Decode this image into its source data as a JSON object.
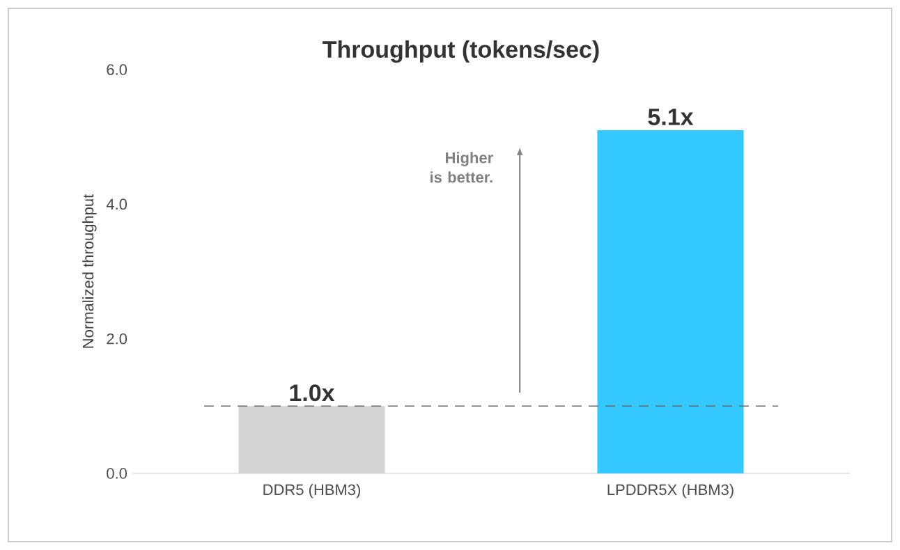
{
  "chart_data": {
    "type": "bar",
    "title": "Throughput (tokens/sec)",
    "ylabel": "Normalized throughput",
    "categories": [
      "DDR5 (HBM3)",
      "LPDDR5X (HBM3)"
    ],
    "values": [
      1.0,
      5.1
    ],
    "colors": [
      "#d4d4d4",
      "#33c8ff"
    ],
    "value_labels": [
      "1.0x",
      "5.1x"
    ],
    "ylim": [
      0,
      6
    ],
    "yticks": [
      {
        "value": 0,
        "label": "0.0"
      },
      {
        "value": 2,
        "label": "2.0"
      },
      {
        "value": 4,
        "label": "4.0"
      },
      {
        "value": 6,
        "label": "6.0"
      }
    ],
    "ref_lines": [
      {
        "axis": "y",
        "value": 1.0,
        "color": "#666666",
        "line_style": "dashed"
      }
    ],
    "annotations": [
      "Higher is better."
    ],
    "grid": false
  }
}
